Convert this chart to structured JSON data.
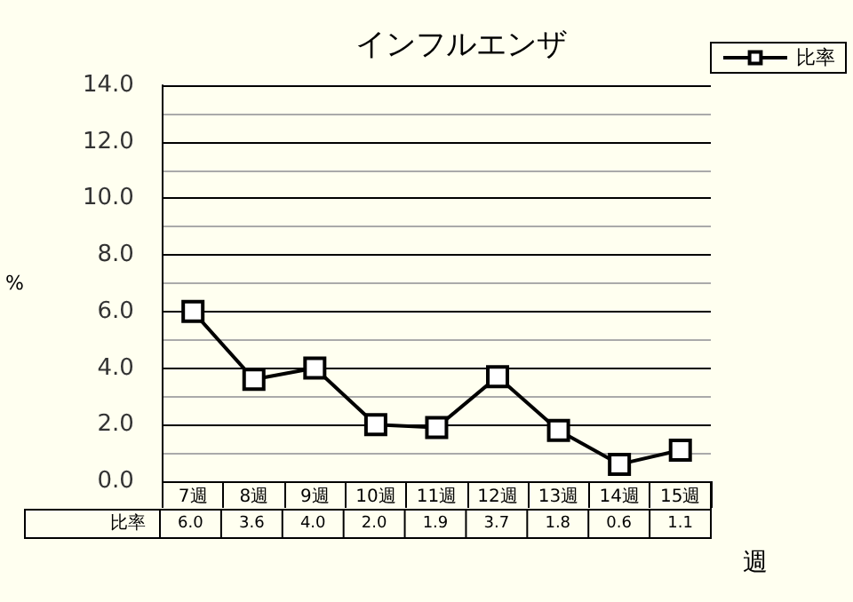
{
  "chart_data": {
    "type": "line",
    "title": "インフルエンザ",
    "ylabel": "%",
    "xlabel": "週",
    "categories": [
      "7週",
      "8週",
      "9週",
      "10週",
      "11週",
      "12週",
      "13週",
      "14週",
      "15週"
    ],
    "series": [
      {
        "name": "比率",
        "color": "#000000",
        "values": [
          6.0,
          3.6,
          4.0,
          2.0,
          1.9,
          3.7,
          1.8,
          0.6,
          1.1
        ],
        "value_labels": [
          "6.0",
          "3.6",
          "4.0",
          "2.0",
          "1.9",
          "3.7",
          "1.8",
          "0.6",
          "1.1"
        ]
      }
    ],
    "ylim": [
      0,
      14
    ],
    "yticks": [
      {
        "value": 0,
        "label": "0.0"
      },
      {
        "value": 2,
        "label": "2.0"
      },
      {
        "value": 4,
        "label": "4.0"
      },
      {
        "value": 6,
        "label": "6.0"
      },
      {
        "value": 8,
        "label": "8.0"
      },
      {
        "value": 10,
        "label": "10.0"
      },
      {
        "value": 12,
        "label": "12.0"
      },
      {
        "value": 14,
        "label": "14.0"
      }
    ],
    "grid": "y",
    "legend": "top right",
    "marker": "square",
    "line_style": "solid"
  }
}
